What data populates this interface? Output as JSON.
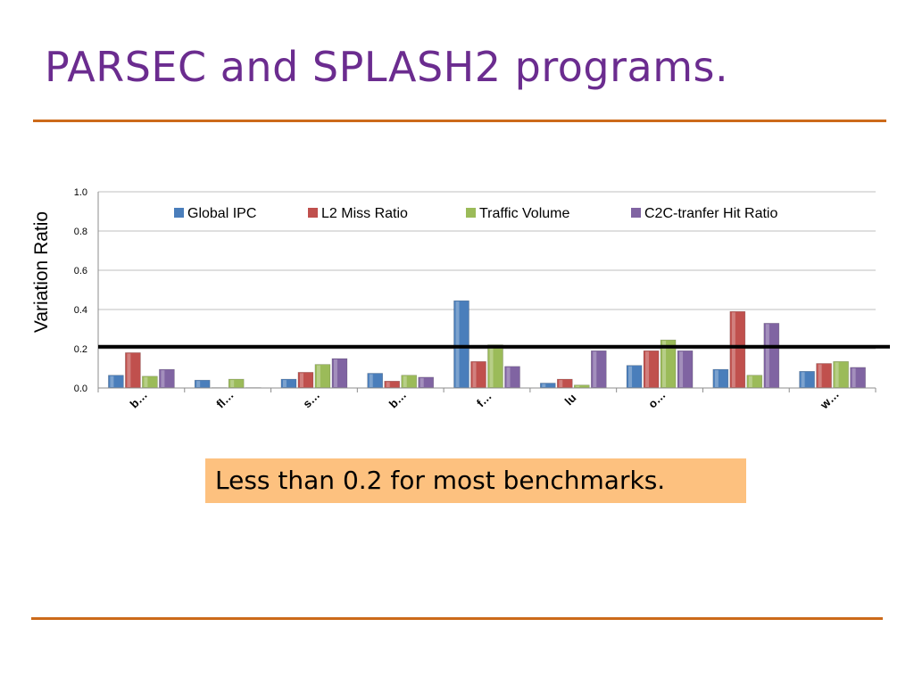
{
  "slide": {
    "title": "PARSEC and SPLASH2 programs.",
    "callout": "Less than 0.2 for most benchmarks.",
    "accent_color": "#cc6a1a",
    "title_color": "#6b2c8f",
    "callout_bg": "#fdc17f"
  },
  "chart_data": {
    "type": "bar",
    "title": "",
    "xlabel": "",
    "ylabel": "Variation Ratio",
    "ylim": [
      0,
      1.0
    ],
    "yticks": [
      "0.0",
      "0.2",
      "0.4",
      "0.6",
      "0.8",
      "1.0"
    ],
    "grid": true,
    "legend_position": "top",
    "categories": [
      "b…",
      "fl…",
      "s…",
      "b…",
      "f…",
      "lu",
      "o…",
      "",
      "w…"
    ],
    "series": [
      {
        "name": "Global IPC",
        "color": "#4a7ebb",
        "values": [
          0.065,
          0.04,
          0.045,
          0.075,
          0.445,
          0.025,
          0.115,
          0.095,
          0.085
        ]
      },
      {
        "name": "L2 Miss Ratio",
        "color": "#c0504d",
        "values": [
          0.18,
          0.0,
          0.08,
          0.035,
          0.135,
          0.045,
          0.19,
          0.39,
          0.125
        ]
      },
      {
        "name": "Traffic Volume",
        "color": "#9bbb59",
        "values": [
          0.06,
          0.045,
          0.12,
          0.065,
          0.22,
          0.015,
          0.245,
          0.065,
          0.135
        ]
      },
      {
        "name": "C2C-tranfer Hit Ratio",
        "color": "#8064a2",
        "values": [
          0.095,
          0.0,
          0.15,
          0.055,
          0.11,
          0.19,
          0.19,
          0.33,
          0.105
        ]
      }
    ],
    "reference_line": {
      "value": 0.21,
      "color": "#000000"
    }
  }
}
